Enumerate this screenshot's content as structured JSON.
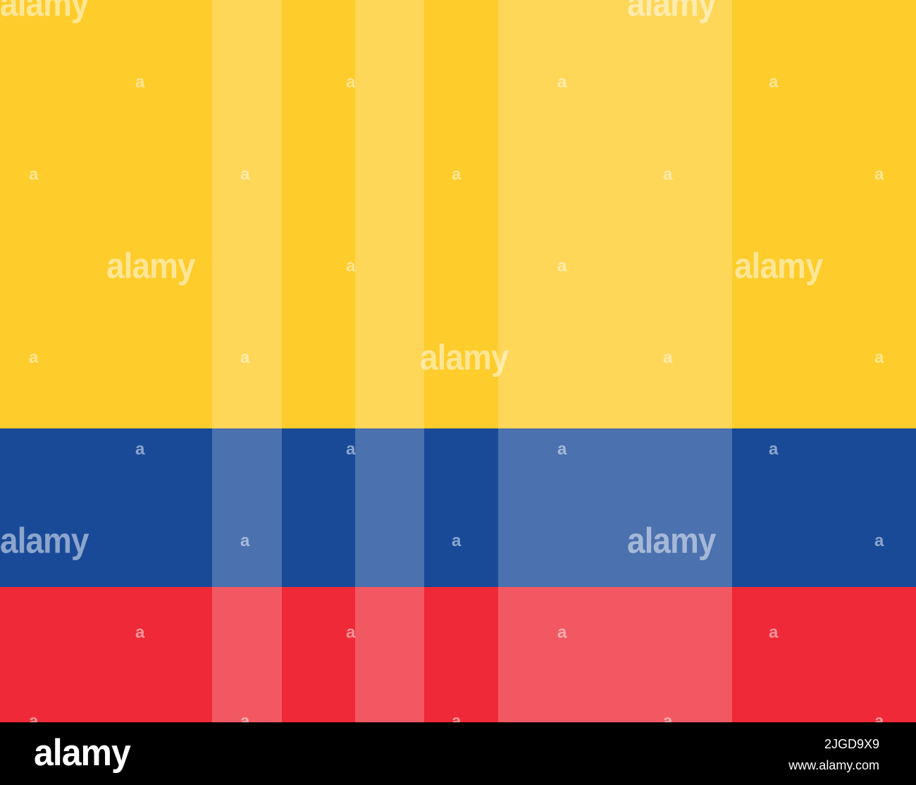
{
  "flag": {
    "colors": {
      "yellow": "#FECC2B",
      "blue": "#194A98",
      "red": "#EF2937"
    }
  },
  "watermark": {
    "text": "alamy",
    "small_text": "a"
  },
  "footer": {
    "logo": "alamy",
    "image_id": "2JGD9X9",
    "url": "www.alamy.com"
  }
}
